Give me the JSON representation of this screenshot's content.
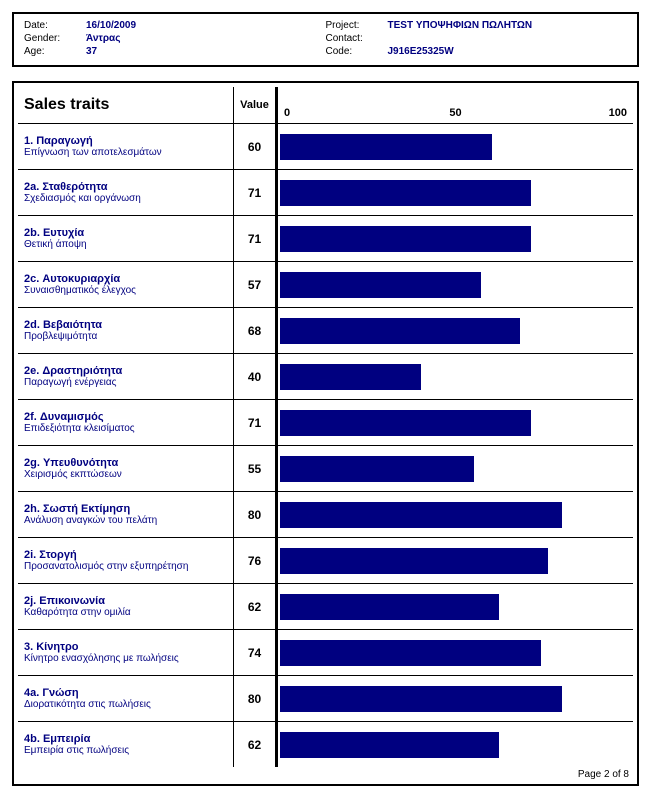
{
  "info": {
    "date_label": "Date:",
    "date_value": "16/10/2009",
    "gender_label": "Gender:",
    "gender_value": "Άντρας",
    "age_label": "Age:",
    "age_value": "37",
    "project_label": "Project:",
    "project_value": "TEST ΥΠΟΨΗΦΙΩΝ ΠΩΛΗΤΩΝ",
    "contact_label": "Contact:",
    "contact_value": "",
    "code_label": "Code:",
    "code_value": "J916E25325W"
  },
  "chart": {
    "title": "Sales traits",
    "value_header": "Value",
    "scale_min": "0",
    "scale_mid": "50",
    "scale_max": "100",
    "bar_color": "#000080",
    "bar_max": 100,
    "traits": [
      {
        "title": "1. Παραγωγή",
        "sub": "Επίγνωση των αποτελεσμάτων",
        "value": 60
      },
      {
        "title": "2a. Σταθερότητα",
        "sub": "Σχεδιασμός και οργάνωση",
        "value": 71
      },
      {
        "title": "2b. Ευτυχία",
        "sub": "Θετική άποψη",
        "value": 71
      },
      {
        "title": "2c. Αυτοκυριαρχία",
        "sub": "Συναισθηματικός έλεγχος",
        "value": 57
      },
      {
        "title": "2d. Βεβαιότητα",
        "sub": "Προβλεψιμότητα",
        "value": 68
      },
      {
        "title": "2e. Δραστηριότητα",
        "sub": "Παραγωγή ενέργειας",
        "value": 40
      },
      {
        "title": "2f. Δυναμισμός",
        "sub": "Επιδεξιότητα κλεισίματος",
        "value": 71
      },
      {
        "title": "2g. Υπευθυνότητα",
        "sub": "Χειρισμός εκπτώσεων",
        "value": 55
      },
      {
        "title": "2h. Σωστή Εκτίμηση",
        "sub": "Ανάλυση αναγκών του πελάτη",
        "value": 80
      },
      {
        "title": "2i. Στοργή",
        "sub": "Προσανατολισμός στην εξυπηρέτηση",
        "value": 76
      },
      {
        "title": "2j. Επικοινωνία",
        "sub": "Καθαρότητα στην ομιλία",
        "value": 62
      },
      {
        "title": "3. Κίνητρο",
        "sub": "Κίνητρο ενασχόλησης με πωλήσεις",
        "value": 74
      },
      {
        "title": "4a. Γνώση",
        "sub": "Διορατικότητα στις πωλήσεις",
        "value": 80
      },
      {
        "title": "4b. Εμπειρία",
        "sub": "Εμπειρία στις πωλήσεις",
        "value": 62
      }
    ]
  },
  "footer": "Page 2 of 8"
}
